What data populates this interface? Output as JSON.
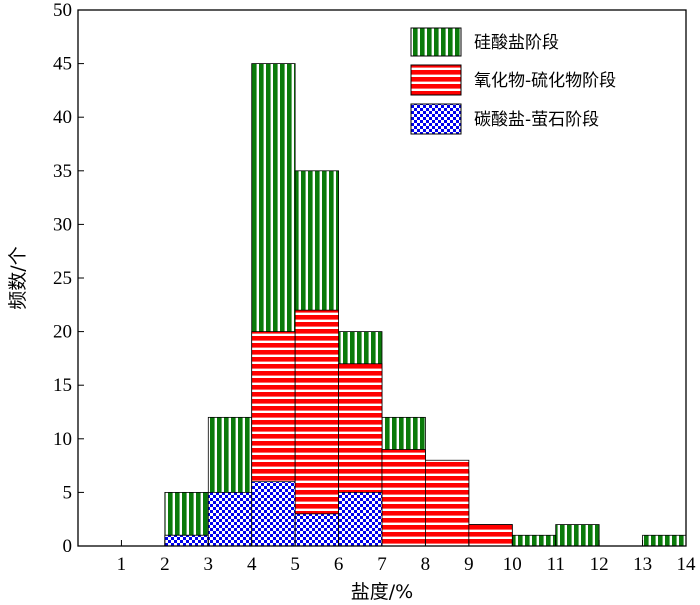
{
  "chart_data": {
    "type": "bar",
    "stacking": "overlaid",
    "xlabel": "盐度/%",
    "ylabel": "频数/个",
    "xlim": [
      0,
      14
    ],
    "ylim": [
      0,
      50
    ],
    "xticks": [
      1,
      2,
      3,
      4,
      5,
      6,
      7,
      8,
      9,
      10,
      11,
      12,
      13,
      14
    ],
    "yticks": [
      0,
      5,
      10,
      15,
      20,
      25,
      30,
      35,
      40,
      45,
      50
    ],
    "bin_width": 1,
    "grid": false,
    "legend_position": "top-right",
    "series": [
      {
        "name": "硅酸盐阶段",
        "color": "#0a7a0a",
        "pattern": "vertical-stripes",
        "bins": [
          [
            2,
            5
          ],
          [
            3,
            12
          ],
          [
            4,
            45
          ],
          [
            5,
            35
          ],
          [
            6,
            20
          ],
          [
            7,
            12
          ],
          [
            8,
            7
          ],
          [
            9,
            2
          ],
          [
            10,
            1
          ],
          [
            11,
            2
          ],
          [
            13,
            1
          ]
        ]
      },
      {
        "name": "氧化物-硫化物阶段",
        "color": "#ff0000",
        "pattern": "horizontal-stripes",
        "bins": [
          [
            2,
            1
          ],
          [
            3,
            5
          ],
          [
            4,
            20
          ],
          [
            5,
            22
          ],
          [
            6,
            17
          ],
          [
            7,
            9
          ],
          [
            8,
            8
          ],
          [
            9,
            2
          ]
        ]
      },
      {
        "name": "碳酸盐-萤石阶段",
        "color": "#0000ee",
        "pattern": "checkerboard",
        "bins": [
          [
            2,
            1
          ],
          [
            3,
            5
          ],
          [
            4,
            6
          ],
          [
            5,
            3
          ],
          [
            6,
            5
          ]
        ]
      }
    ]
  }
}
